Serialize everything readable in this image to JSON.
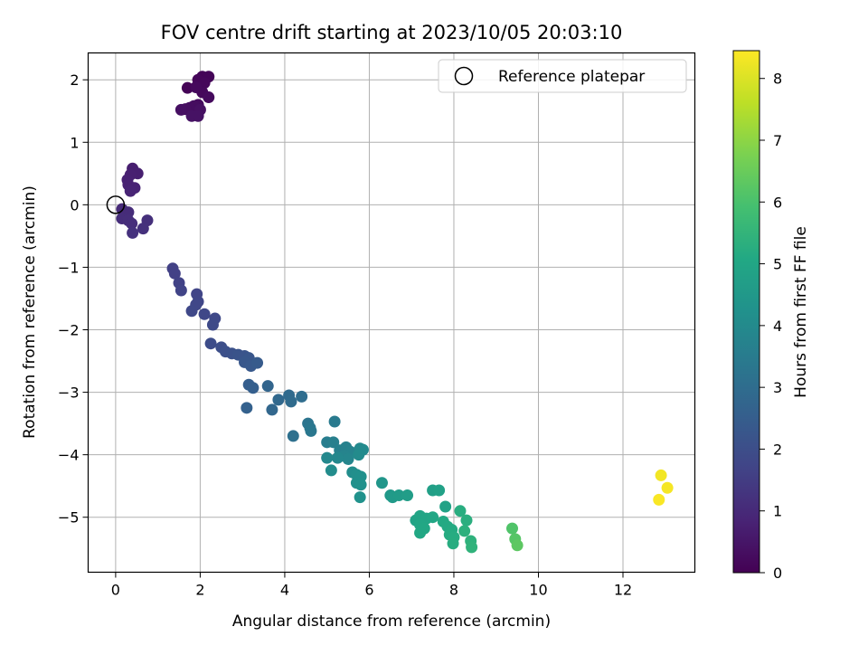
{
  "chart_data": {
    "type": "scatter",
    "title": "FOV centre drift starting at 2023/10/05 20:03:10",
    "xlabel": "Angular distance from reference (arcmin)",
    "ylabel": "Rotation from reference (arcmin)",
    "xlim": [
      -0.65,
      13.7
    ],
    "ylim": [
      -5.88,
      2.43
    ],
    "xticks": [
      0,
      2,
      4,
      6,
      8,
      10,
      12
    ],
    "yticks": [
      -5,
      -4,
      -3,
      -2,
      -1,
      0,
      1,
      2
    ],
    "grid": true,
    "legend": {
      "placement": "top-right",
      "entries": [
        "Reference platepar"
      ]
    },
    "reference": {
      "x": 0,
      "y": 0,
      "label": "Reference platepar"
    },
    "colorbar": {
      "label": "Hours from first FF file",
      "range": [
        0,
        8.45
      ],
      "ticks": [
        0,
        1,
        2,
        3,
        4,
        5,
        6,
        7,
        8
      ],
      "colormap": "viridis"
    },
    "points": [
      {
        "x": 1.7,
        "y": 1.87,
        "c": 0.05
      },
      {
        "x": 2.05,
        "y": 2.05,
        "c": 0.08
      },
      {
        "x": 2.2,
        "y": 2.05,
        "c": 0.1
      },
      {
        "x": 1.95,
        "y": 2.0,
        "c": 0.12
      },
      {
        "x": 2.1,
        "y": 1.95,
        "c": 0.15
      },
      {
        "x": 2.05,
        "y": 1.8,
        "c": 0.18
      },
      {
        "x": 1.9,
        "y": 1.88,
        "c": 0.2
      },
      {
        "x": 2.2,
        "y": 1.72,
        "c": 0.22
      },
      {
        "x": 1.95,
        "y": 1.6,
        "c": 0.25
      },
      {
        "x": 1.85,
        "y": 1.58,
        "c": 0.28
      },
      {
        "x": 1.75,
        "y": 1.55,
        "c": 0.3
      },
      {
        "x": 1.65,
        "y": 1.53,
        "c": 0.32
      },
      {
        "x": 1.55,
        "y": 1.52,
        "c": 0.35
      },
      {
        "x": 2.0,
        "y": 1.52,
        "c": 0.37
      },
      {
        "x": 1.8,
        "y": 1.42,
        "c": 0.4
      },
      {
        "x": 1.95,
        "y": 1.42,
        "c": 0.42
      },
      {
        "x": 0.4,
        "y": 0.58,
        "c": 0.7
      },
      {
        "x": 0.52,
        "y": 0.5,
        "c": 0.72
      },
      {
        "x": 0.35,
        "y": 0.48,
        "c": 0.75
      },
      {
        "x": 0.28,
        "y": 0.4,
        "c": 0.78
      },
      {
        "x": 0.3,
        "y": 0.32,
        "c": 0.8
      },
      {
        "x": 0.45,
        "y": 0.27,
        "c": 0.82
      },
      {
        "x": 0.35,
        "y": 0.22,
        "c": 0.85
      },
      {
        "x": 0.15,
        "y": -0.07,
        "c": 1.0
      },
      {
        "x": 0.2,
        "y": -0.12,
        "c": 1.02
      },
      {
        "x": 0.3,
        "y": -0.12,
        "c": 1.05
      },
      {
        "x": 0.15,
        "y": -0.22,
        "c": 1.07
      },
      {
        "x": 0.3,
        "y": -0.25,
        "c": 1.1
      },
      {
        "x": 0.38,
        "y": -0.3,
        "c": 1.12
      },
      {
        "x": 0.75,
        "y": -0.25,
        "c": 1.15
      },
      {
        "x": 0.65,
        "y": -0.38,
        "c": 1.18
      },
      {
        "x": 0.4,
        "y": -0.45,
        "c": 1.2
      },
      {
        "x": 1.35,
        "y": -1.02,
        "c": 1.6
      },
      {
        "x": 1.4,
        "y": -1.1,
        "c": 1.62
      },
      {
        "x": 1.5,
        "y": -1.25,
        "c": 1.65
      },
      {
        "x": 1.55,
        "y": -1.37,
        "c": 1.68
      },
      {
        "x": 1.92,
        "y": -1.43,
        "c": 1.72
      },
      {
        "x": 1.95,
        "y": -1.55,
        "c": 1.75
      },
      {
        "x": 1.9,
        "y": -1.6,
        "c": 1.78
      },
      {
        "x": 1.8,
        "y": -1.7,
        "c": 1.8
      },
      {
        "x": 2.1,
        "y": -1.75,
        "c": 1.82
      },
      {
        "x": 2.35,
        "y": -1.82,
        "c": 1.85
      },
      {
        "x": 2.3,
        "y": -1.92,
        "c": 1.88
      },
      {
        "x": 2.25,
        "y": -2.22,
        "c": 1.95
      },
      {
        "x": 2.5,
        "y": -2.28,
        "c": 2.0
      },
      {
        "x": 2.6,
        "y": -2.35,
        "c": 2.05
      },
      {
        "x": 2.75,
        "y": -2.38,
        "c": 2.1
      },
      {
        "x": 2.9,
        "y": -2.4,
        "c": 2.15
      },
      {
        "x": 3.05,
        "y": -2.42,
        "c": 2.2
      },
      {
        "x": 3.15,
        "y": -2.45,
        "c": 2.25
      },
      {
        "x": 3.05,
        "y": -2.52,
        "c": 2.3
      },
      {
        "x": 3.2,
        "y": -2.58,
        "c": 2.35
      },
      {
        "x": 3.35,
        "y": -2.53,
        "c": 2.4
      },
      {
        "x": 3.15,
        "y": -2.88,
        "c": 2.5
      },
      {
        "x": 3.25,
        "y": -2.93,
        "c": 2.55
      },
      {
        "x": 3.1,
        "y": -3.25,
        "c": 2.6
      },
      {
        "x": 3.6,
        "y": -2.9,
        "c": 2.75
      },
      {
        "x": 3.7,
        "y": -3.28,
        "c": 2.8
      },
      {
        "x": 3.85,
        "y": -3.12,
        "c": 2.85
      },
      {
        "x": 4.1,
        "y": -3.05,
        "c": 2.9
      },
      {
        "x": 4.15,
        "y": -3.15,
        "c": 2.95
      },
      {
        "x": 4.4,
        "y": -3.07,
        "c": 3.0
      },
      {
        "x": 4.2,
        "y": -3.7,
        "c": 3.1
      },
      {
        "x": 4.55,
        "y": -3.5,
        "c": 3.25
      },
      {
        "x": 4.6,
        "y": -3.57,
        "c": 3.3
      },
      {
        "x": 4.62,
        "y": -3.62,
        "c": 3.35
      },
      {
        "x": 5.18,
        "y": -3.47,
        "c": 3.45
      },
      {
        "x": 5.0,
        "y": -3.8,
        "c": 3.55
      },
      {
        "x": 5.15,
        "y": -3.8,
        "c": 3.6
      },
      {
        "x": 5.3,
        "y": -3.93,
        "c": 3.65
      },
      {
        "x": 5.45,
        "y": -3.88,
        "c": 3.7
      },
      {
        "x": 5.55,
        "y": -3.95,
        "c": 3.75
      },
      {
        "x": 5.4,
        "y": -4.02,
        "c": 3.8
      },
      {
        "x": 5.5,
        "y": -4.07,
        "c": 3.85
      },
      {
        "x": 5.25,
        "y": -4.05,
        "c": 3.9
      },
      {
        "x": 5.0,
        "y": -4.05,
        "c": 3.92
      },
      {
        "x": 5.78,
        "y": -3.9,
        "c": 3.95
      },
      {
        "x": 5.85,
        "y": -3.92,
        "c": 4.0
      },
      {
        "x": 5.75,
        "y": -4.0,
        "c": 4.02
      },
      {
        "x": 5.1,
        "y": -4.25,
        "c": 4.05
      },
      {
        "x": 5.6,
        "y": -4.28,
        "c": 4.1
      },
      {
        "x": 5.7,
        "y": -4.32,
        "c": 4.15
      },
      {
        "x": 5.8,
        "y": -4.35,
        "c": 4.18
      },
      {
        "x": 5.7,
        "y": -4.45,
        "c": 4.2
      },
      {
        "x": 5.8,
        "y": -4.48,
        "c": 4.22
      },
      {
        "x": 5.78,
        "y": -4.68,
        "c": 4.25
      },
      {
        "x": 6.3,
        "y": -4.45,
        "c": 4.4
      },
      {
        "x": 6.5,
        "y": -4.65,
        "c": 4.5
      },
      {
        "x": 6.55,
        "y": -4.68,
        "c": 4.55
      },
      {
        "x": 6.7,
        "y": -4.65,
        "c": 4.6
      },
      {
        "x": 6.9,
        "y": -4.65,
        "c": 4.65
      },
      {
        "x": 7.5,
        "y": -4.57,
        "c": 4.75
      },
      {
        "x": 7.65,
        "y": -4.57,
        "c": 4.8
      },
      {
        "x": 7.8,
        "y": -4.83,
        "c": 4.85
      },
      {
        "x": 7.1,
        "y": -5.05,
        "c": 4.9
      },
      {
        "x": 7.2,
        "y": -4.98,
        "c": 4.92
      },
      {
        "x": 7.35,
        "y": -5.02,
        "c": 4.95
      },
      {
        "x": 7.5,
        "y": -5.0,
        "c": 4.98
      },
      {
        "x": 7.2,
        "y": -5.12,
        "c": 5.0
      },
      {
        "x": 7.3,
        "y": -5.18,
        "c": 5.02
      },
      {
        "x": 7.2,
        "y": -5.25,
        "c": 5.05
      },
      {
        "x": 7.75,
        "y": -5.07,
        "c": 5.1
      },
      {
        "x": 7.85,
        "y": -5.15,
        "c": 5.12
      },
      {
        "x": 7.95,
        "y": -5.2,
        "c": 5.15
      },
      {
        "x": 7.9,
        "y": -5.28,
        "c": 5.18
      },
      {
        "x": 8.0,
        "y": -5.32,
        "c": 5.2
      },
      {
        "x": 7.98,
        "y": -5.42,
        "c": 5.22
      },
      {
        "x": 8.15,
        "y": -4.9,
        "c": 5.25
      },
      {
        "x": 8.3,
        "y": -5.05,
        "c": 5.3
      },
      {
        "x": 8.25,
        "y": -5.22,
        "c": 5.35
      },
      {
        "x": 8.4,
        "y": -5.38,
        "c": 5.4
      },
      {
        "x": 8.42,
        "y": -5.48,
        "c": 5.45
      },
      {
        "x": 9.38,
        "y": -5.18,
        "c": 6.1
      },
      {
        "x": 9.45,
        "y": -5.35,
        "c": 6.2
      },
      {
        "x": 9.5,
        "y": -5.45,
        "c": 6.3
      },
      {
        "x": 12.9,
        "y": -4.33,
        "c": 8.3
      },
      {
        "x": 13.05,
        "y": -4.53,
        "c": 8.35
      },
      {
        "x": 12.85,
        "y": -4.72,
        "c": 8.4
      }
    ]
  }
}
